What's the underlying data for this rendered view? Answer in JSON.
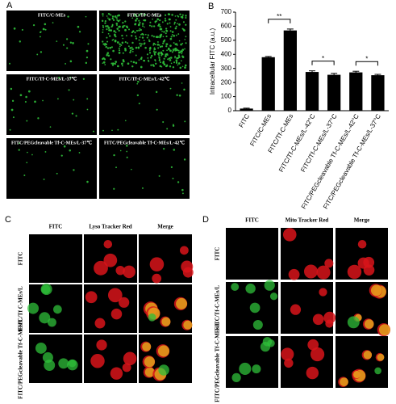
{
  "panel_a": {
    "label": "A",
    "images": [
      "FITC/C-MEs",
      "FITC/Tf-C-MEs",
      "FITC/Tf-C-MEs/L-37℃",
      "FITC/Tf-C-MEs/L-42℃",
      "FITC/PEGcleavable Tf-C-MEs/L-37℃",
      "FITC/PEGcleavable Tf-C-MEs/L-42℃"
    ]
  },
  "panel_b": {
    "label": "B"
  },
  "chart_data": {
    "type": "bar",
    "y_label": "Intracellular FITC (a.u.)",
    "categories": [
      "FITC",
      "FITC/C-MEs",
      "FITC/Tf-C-MEs",
      "FITC/Tf-C-MEs/L-42°C",
      "FITC/Tf-C-MEs/L-37°C",
      "FITC/PEGcleavable Tf-C-MEs/L-42°C",
      "FITC/PEGcleavable Tf-C-MEs/L-37°C"
    ],
    "values": [
      15,
      380,
      570,
      275,
      255,
      272,
      252
    ],
    "errors": [
      3,
      5,
      10,
      8,
      10,
      8,
      6
    ],
    "color": "#000000",
    "ylim": [
      0,
      700
    ],
    "yticks": [
      0,
      100,
      200,
      300,
      400,
      500,
      600,
      700
    ],
    "annotations": [
      {
        "text": "**",
        "categories": [
          1,
          2
        ]
      },
      {
        "text": "*",
        "categories": [
          3,
          4
        ]
      },
      {
        "text": "*",
        "categories": [
          5,
          6
        ]
      }
    ]
  },
  "panel_c": {
    "label": "C",
    "columns": [
      "FITC",
      "Lyso Tracker Red",
      "Merge"
    ],
    "rows": [
      "FITC",
      "FITC/Tf C-MEs/L",
      "FITC/PEGcleavable Tf-C-MEs/L"
    ]
  },
  "panel_d": {
    "label": "D",
    "columns": [
      "FITC",
      "Mito Tracker Red",
      "Merge"
    ],
    "rows": [
      "FITC",
      "FITC/Tf-C-MEs/L",
      "FITC/PEGcleavable Tf-C-MEs/L"
    ]
  }
}
